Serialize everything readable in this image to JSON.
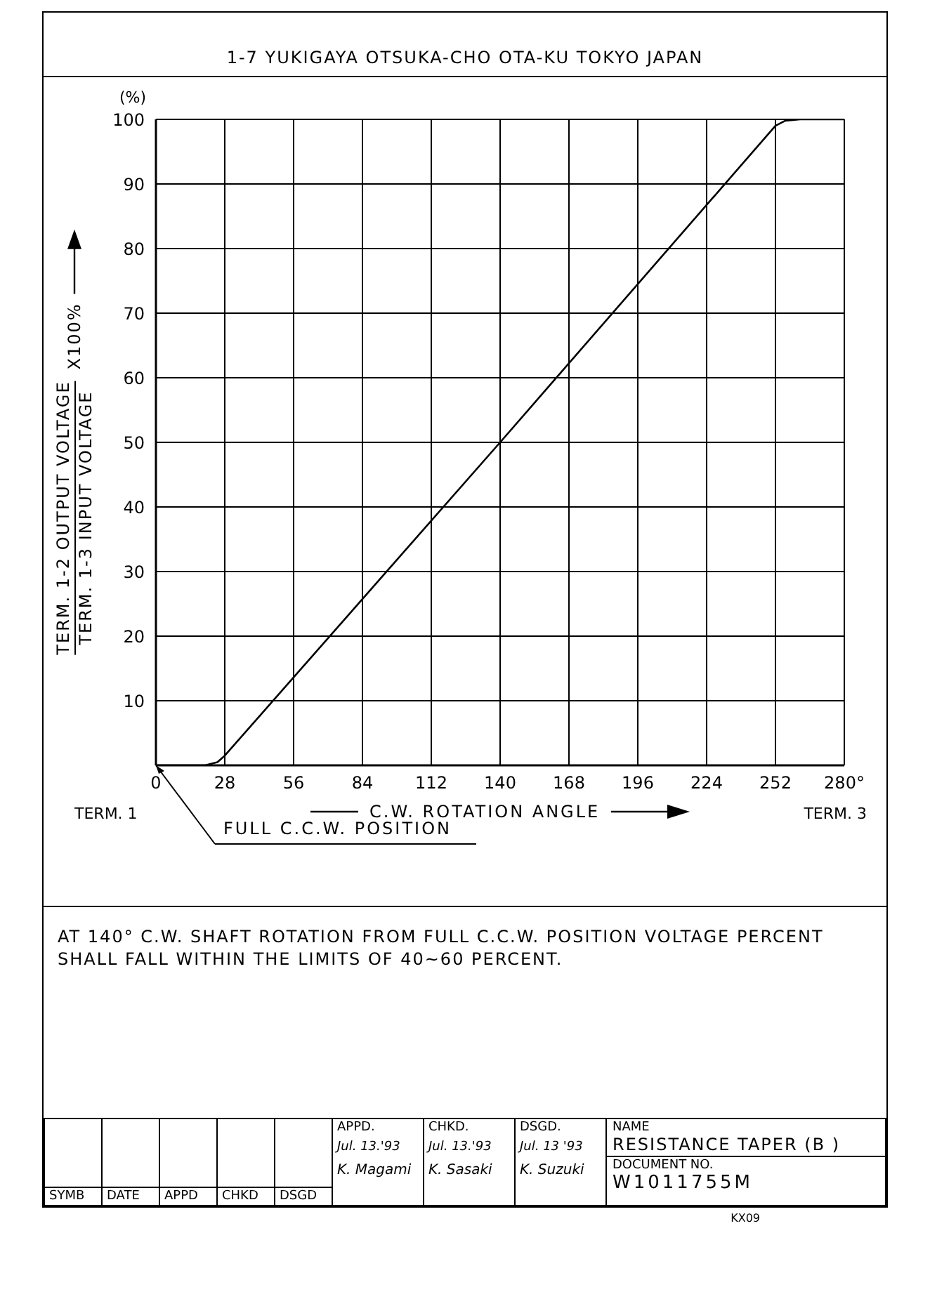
{
  "chart_data": {
    "type": "line",
    "title": "RESISTANCE TAPER (B )",
    "xlabel": "C.W. ROTATION ANGLE",
    "ylabel": "TERM. 1-2 OUTPUT VOLTAGE",
    "x": [
      0,
      20,
      25,
      28,
      140,
      252,
      256,
      262,
      280
    ],
    "series": [
      {
        "color": "#000000",
        "values": [
          0,
          0,
          0.5,
          1.5,
          50,
          99,
          99.8,
          100,
          100
        ]
      }
    ],
    "xlim": [
      0,
      280
    ],
    "ylim": [
      0,
      100
    ],
    "xticks": [
      0,
      28,
      56,
      84,
      112,
      140,
      168,
      196,
      224,
      252,
      {
        "value": 280,
        "label": "280°"
      }
    ],
    "yticks": [
      {
        "value": 0,
        "label": null
      },
      10,
      20,
      30,
      40,
      50,
      60,
      70,
      80,
      90,
      100
    ],
    "grid": true,
    "marker": "none",
    "line_style": "solid",
    "annotations": [
      "(%)",
      "TERM. 1-3 INPUT VOLTAGE",
      "X100%",
      "TERM. 1",
      "TERM. 3",
      {
        "text": "FULL C.C.W. POSITION",
        "x": 0,
        "y": 0
      },
      "1-7 YUKIGAYA OTSUKA-CHO OTA-KU TOKYO JAPAN",
      "AT 140° C.W. SHAFT ROTATION FROM FULL C.C.W. POSITION VOLTAGE PERCENT SHALL FALL WITHIN THE LIMITS OF 40~60 PERCENT.",
      "SYMB",
      "DATE",
      "APPD",
      "CHKD",
      "DSGD",
      "APPD.",
      "CHKD.",
      "DSGD.",
      "Jul. 13.'93",
      "Jul. 13.'93",
      "Jul. 13 '93",
      "K. Magami",
      "K. Sasaki",
      "K. Suzuki",
      "NAME",
      "DOCUMENT NO.",
      "W1011755M",
      "KX09"
    ]
  }
}
